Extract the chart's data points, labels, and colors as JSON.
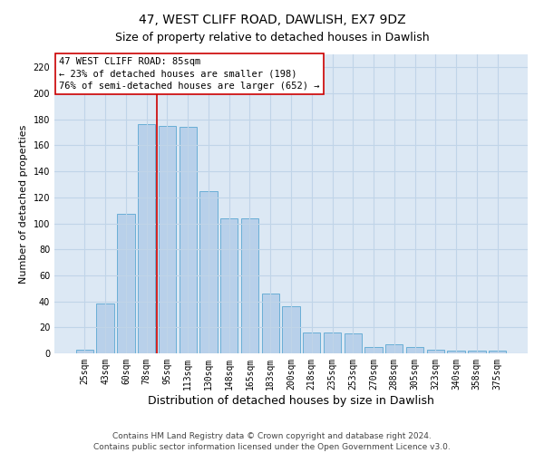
{
  "title": "47, WEST CLIFF ROAD, DAWLISH, EX7 9DZ",
  "subtitle": "Size of property relative to detached houses in Dawlish",
  "xlabel": "Distribution of detached houses by size in Dawlish",
  "ylabel": "Number of detached properties",
  "footer_line1": "Contains HM Land Registry data © Crown copyright and database right 2024.",
  "footer_line2": "Contains public sector information licensed under the Open Government Licence v3.0.",
  "categories": [
    "25sqm",
    "43sqm",
    "60sqm",
    "78sqm",
    "95sqm",
    "113sqm",
    "130sqm",
    "148sqm",
    "165sqm",
    "183sqm",
    "200sqm",
    "218sqm",
    "235sqm",
    "253sqm",
    "270sqm",
    "288sqm",
    "305sqm",
    "323sqm",
    "340sqm",
    "358sqm",
    "375sqm"
  ],
  "values": [
    3,
    38,
    107,
    176,
    175,
    174,
    125,
    104,
    104,
    46,
    36,
    16,
    16,
    15,
    5,
    7,
    5,
    3,
    2,
    2,
    2
  ],
  "bar_color": "#b8d0ea",
  "bar_edge_color": "#6aaed6",
  "grid_color": "#c0d4e8",
  "background_color": "#dce8f4",
  "annotation_box_text": "47 WEST CLIFF ROAD: 85sqm\n← 23% of detached houses are smaller (198)\n76% of semi-detached houses are larger (652) →",
  "annotation_box_color": "#ffffff",
  "annotation_box_edge_color": "#cc0000",
  "annotation_line_color": "#cc0000",
  "vline_x": 3.48,
  "ylim": [
    0,
    230
  ],
  "yticks": [
    0,
    20,
    40,
    60,
    80,
    100,
    120,
    140,
    160,
    180,
    200,
    220
  ],
  "title_fontsize": 10,
  "subtitle_fontsize": 9,
  "xlabel_fontsize": 9,
  "ylabel_fontsize": 8,
  "tick_fontsize": 7,
  "annotation_fontsize": 7.5,
  "footer_fontsize": 6.5
}
